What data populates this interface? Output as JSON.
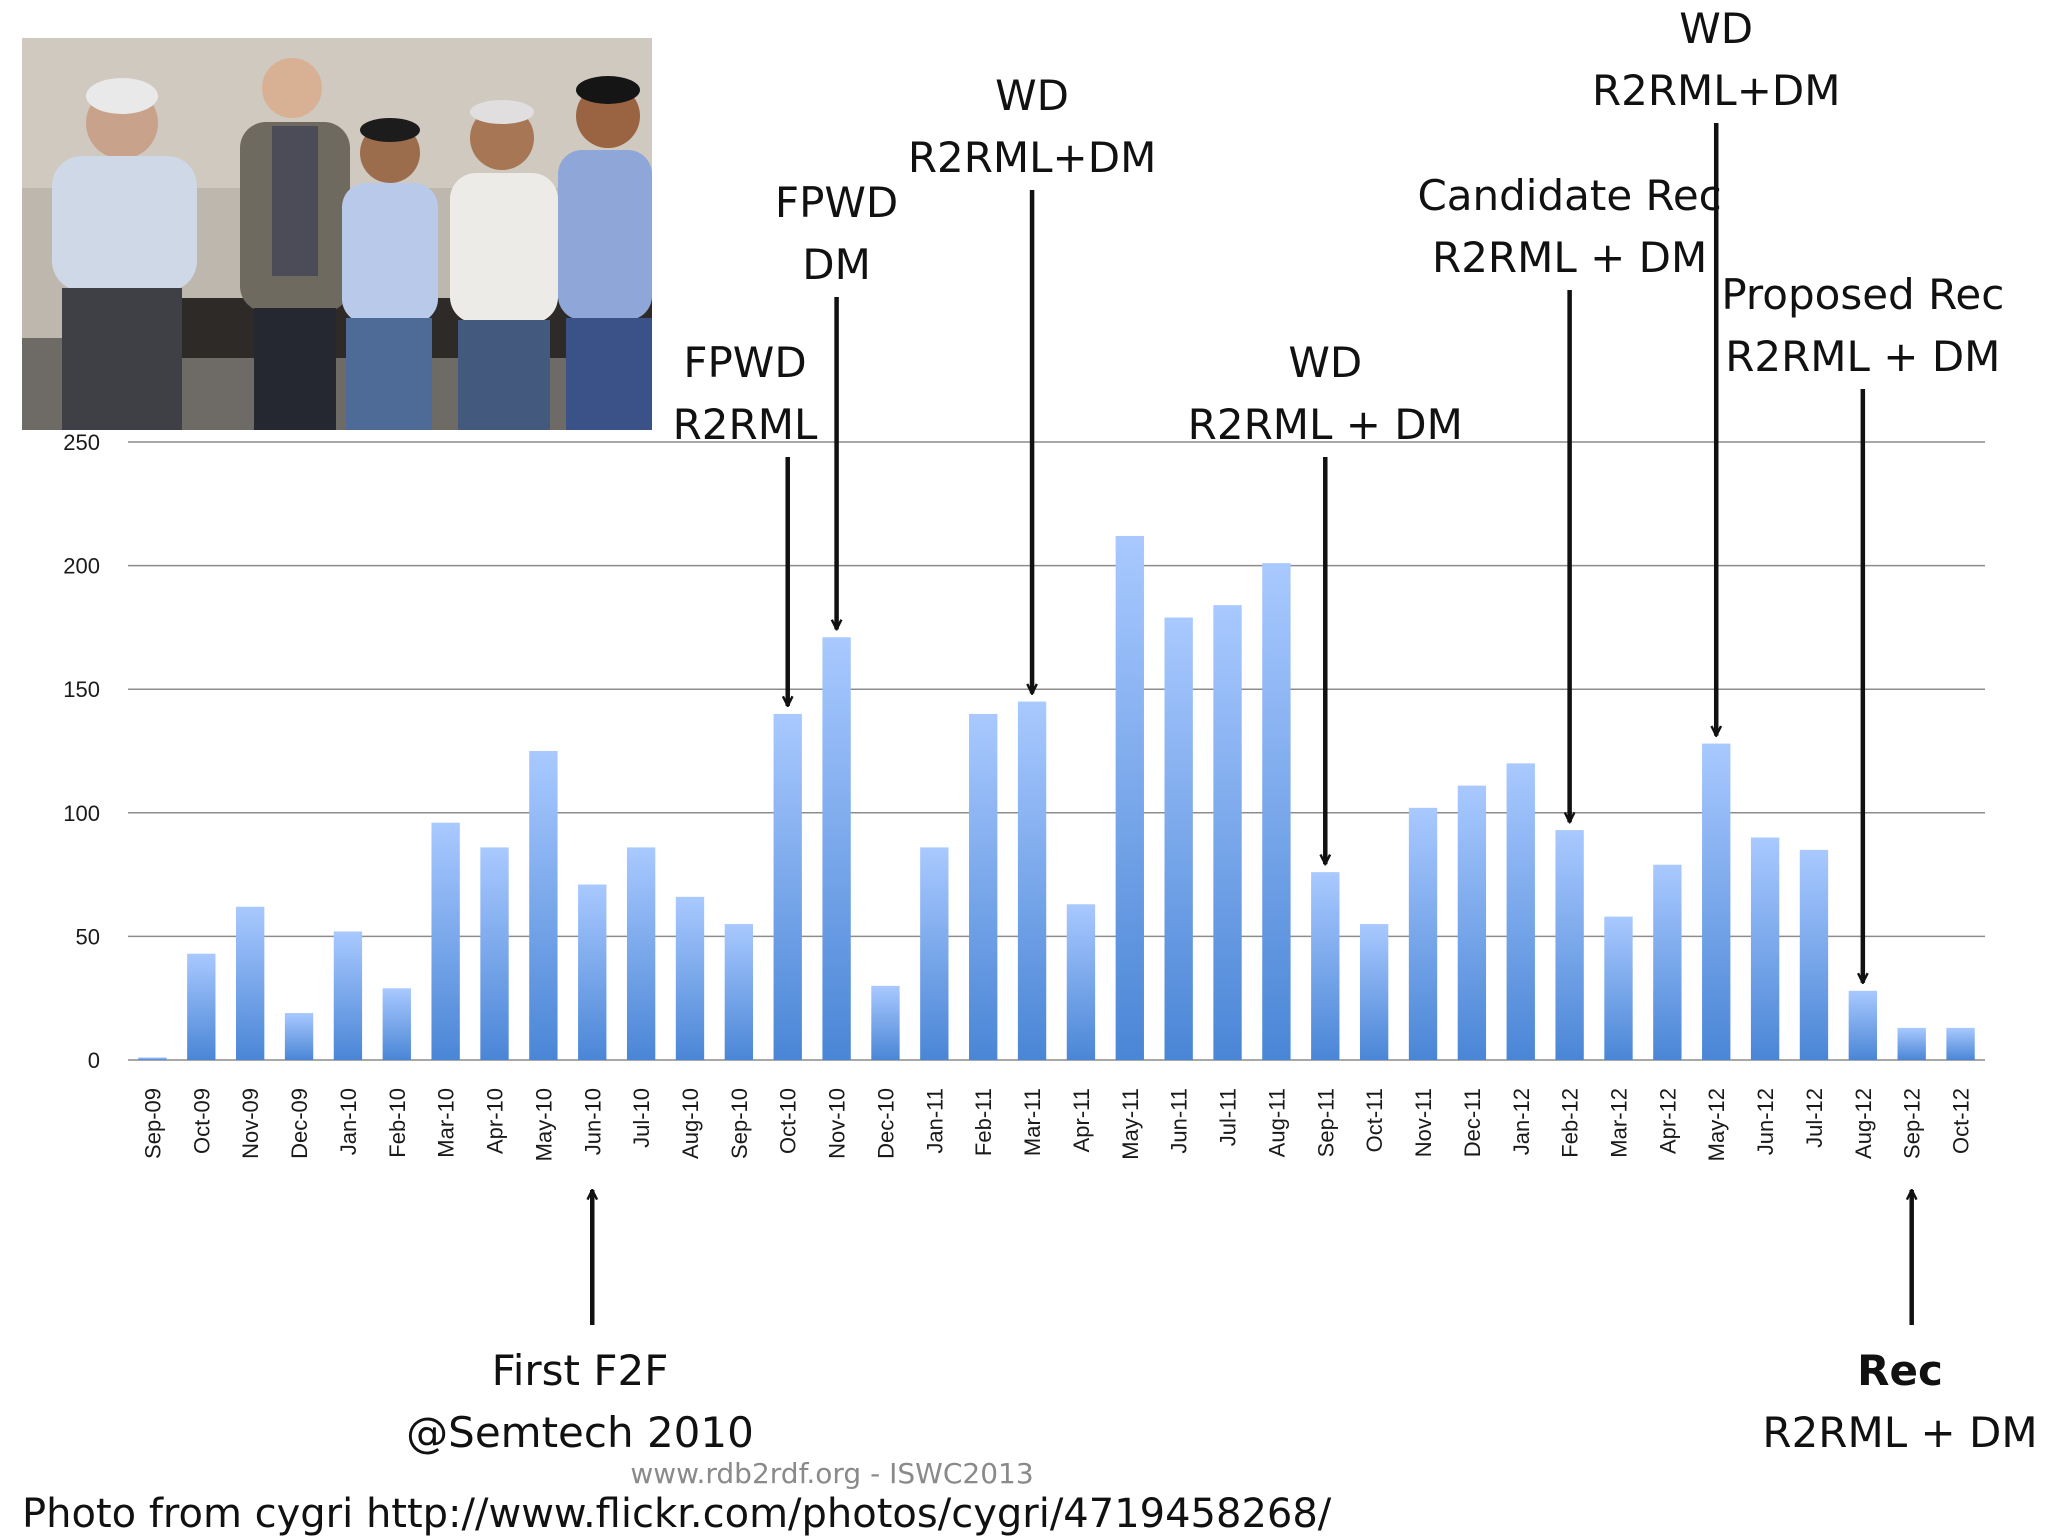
{
  "chart_data": {
    "type": "bar",
    "categories": [
      "Sep-09",
      "Oct-09",
      "Nov-09",
      "Dec-09",
      "Jan-10",
      "Feb-10",
      "Mar-10",
      "Apr-10",
      "May-10",
      "Jun-10",
      "Jul-10",
      "Aug-10",
      "Sep-10",
      "Oct-10",
      "Nov-10",
      "Dec-10",
      "Jan-11",
      "Feb-11",
      "Mar-11",
      "Apr-11",
      "May-11",
      "Jun-11",
      "Jul-11",
      "Aug-11",
      "Sep-11",
      "Oct-11",
      "Nov-11",
      "Dec-11",
      "Jan-12",
      "Feb-12",
      "Mar-12",
      "Apr-12",
      "May-12",
      "Jun-12",
      "Jul-12",
      "Aug-12",
      "Sep-12",
      "Oct-12"
    ],
    "values": [
      1,
      43,
      62,
      19,
      52,
      29,
      96,
      86,
      125,
      71,
      86,
      66,
      55,
      140,
      171,
      30,
      86,
      140,
      145,
      63,
      212,
      179,
      184,
      201,
      76,
      55,
      102,
      111,
      120,
      93,
      58,
      79,
      128,
      90,
      85,
      28,
      13,
      13
    ],
    "ylim": [
      0,
      250
    ],
    "yticks": [
      0,
      50,
      100,
      150,
      200,
      250
    ],
    "grid": true,
    "title": "",
    "xlabel": "",
    "ylabel": "",
    "colors": {
      "bar_top": "#a9c9ff",
      "bar_bottom": "#4a86d6",
      "grid": "#8c8c8c",
      "arrow": "#111111"
    },
    "annotations": [
      {
        "id": "fpwd-r2rml",
        "lines": [
          "FPWD",
          "R2RML"
        ],
        "category": "Oct-10",
        "side": "above"
      },
      {
        "id": "fpwd-dm",
        "lines": [
          "FPWD",
          "DM"
        ],
        "category": "Nov-10",
        "side": "above"
      },
      {
        "id": "wd-mar11",
        "lines": [
          "WD",
          "R2RML+DM"
        ],
        "category": "Mar-11",
        "side": "above"
      },
      {
        "id": "wd-sep11",
        "lines": [
          "WD",
          "R2RML + DM"
        ],
        "category": "Sep-11",
        "side": "above"
      },
      {
        "id": "candidate-rec",
        "lines": [
          "Candidate Rec",
          "R2RML + DM"
        ],
        "category": "Feb-12",
        "side": "above"
      },
      {
        "id": "wd-may12",
        "lines": [
          "WD",
          "R2RML+DM"
        ],
        "category": "May-12",
        "side": "above"
      },
      {
        "id": "proposed-rec",
        "lines": [
          "Proposed Rec",
          "R2RML + DM"
        ],
        "category": "Aug-12",
        "side": "above"
      },
      {
        "id": "first-f2f",
        "lines": [
          "First F2F",
          "@Semtech 2010"
        ],
        "category": "Jun-10",
        "side": "below"
      },
      {
        "id": "rec",
        "lines": [
          "Rec",
          "R2RML + DM"
        ],
        "category": "Sep-12",
        "side": "below",
        "bold_first": true
      }
    ]
  },
  "photo": {
    "alt_subject": "group-photo-five-people"
  },
  "credit": "Photo from cygri http://www.flickr.com/photos/cygri/4719458268/",
  "footer": "www.rdb2rdf.org - ISWC2013"
}
